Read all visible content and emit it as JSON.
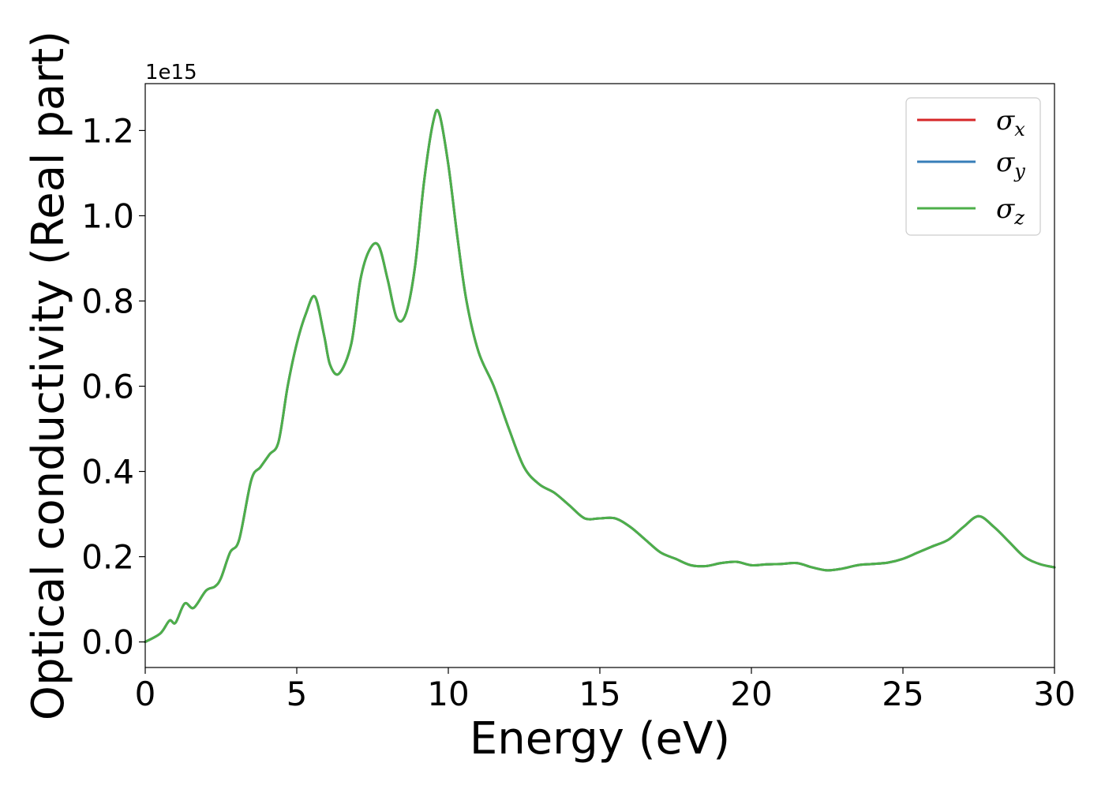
{
  "chart_data": {
    "type": "line",
    "title": "",
    "xlabel": "Energy (eV)",
    "ylabel": "Optical conductivity (Real part)",
    "y_offset_label": "1e15",
    "y_scale_exponent": 15,
    "xlim": [
      0,
      30
    ],
    "ylim": [
      -0.06,
      1.31
    ],
    "x_ticks": [
      0,
      5,
      10,
      15,
      20,
      25,
      30
    ],
    "x_tick_labels": [
      "0",
      "5",
      "10",
      "15",
      "20",
      "25",
      "30"
    ],
    "y_ticks": [
      0.0,
      0.2,
      0.4,
      0.6,
      0.8,
      1.0,
      1.2
    ],
    "y_tick_labels": [
      "0.0",
      "0.2",
      "0.4",
      "0.6",
      "0.8",
      "1.0",
      "1.2"
    ],
    "grid": false,
    "legend_position": "top-right",
    "x": [
      0,
      0.5,
      0.8,
      1.0,
      1.3,
      1.6,
      2.0,
      2.3,
      2.5,
      2.8,
      3.1,
      3.5,
      3.8,
      4.1,
      4.4,
      4.7,
      5.0,
      5.3,
      5.6,
      5.9,
      6.1,
      6.4,
      6.8,
      7.1,
      7.4,
      7.7,
      8.0,
      8.3,
      8.6,
      8.9,
      9.2,
      9.5,
      9.7,
      10.0,
      10.3,
      10.6,
      11.0,
      11.5,
      12.0,
      12.5,
      13.0,
      13.5,
      14.0,
      14.5,
      15.0,
      15.5,
      16.0,
      16.5,
      17.0,
      17.5,
      18.0,
      18.5,
      19.0,
      19.5,
      20.0,
      20.5,
      21.0,
      21.5,
      22.0,
      22.5,
      23.0,
      23.5,
      24.0,
      24.5,
      25.0,
      25.5,
      26.0,
      26.5,
      27.0,
      27.5,
      28.0,
      28.5,
      29.0,
      29.5,
      30.0
    ],
    "series": [
      {
        "name": "σx",
        "color": "#d62728",
        "values": [
          0.0,
          0.02,
          0.05,
          0.045,
          0.09,
          0.08,
          0.12,
          0.13,
          0.15,
          0.21,
          0.24,
          0.38,
          0.41,
          0.44,
          0.47,
          0.6,
          0.7,
          0.77,
          0.81,
          0.72,
          0.65,
          0.63,
          0.7,
          0.85,
          0.92,
          0.93,
          0.85,
          0.76,
          0.77,
          0.88,
          1.08,
          1.22,
          1.24,
          1.12,
          0.95,
          0.8,
          0.68,
          0.6,
          0.5,
          0.41,
          0.37,
          0.35,
          0.32,
          0.29,
          0.29,
          0.29,
          0.27,
          0.24,
          0.21,
          0.195,
          0.18,
          0.178,
          0.185,
          0.188,
          0.18,
          0.182,
          0.183,
          0.185,
          0.175,
          0.168,
          0.172,
          0.18,
          0.183,
          0.186,
          0.195,
          0.21,
          0.225,
          0.24,
          0.27,
          0.295,
          0.27,
          0.235,
          0.2,
          0.183,
          0.175
        ]
      },
      {
        "name": "σy",
        "color": "#377eb8",
        "values": [
          0.0,
          0.02,
          0.05,
          0.045,
          0.09,
          0.08,
          0.12,
          0.13,
          0.15,
          0.21,
          0.24,
          0.38,
          0.41,
          0.44,
          0.47,
          0.6,
          0.7,
          0.77,
          0.81,
          0.72,
          0.65,
          0.63,
          0.7,
          0.85,
          0.92,
          0.93,
          0.85,
          0.76,
          0.77,
          0.88,
          1.08,
          1.22,
          1.24,
          1.12,
          0.95,
          0.8,
          0.68,
          0.6,
          0.5,
          0.41,
          0.37,
          0.35,
          0.32,
          0.29,
          0.29,
          0.29,
          0.27,
          0.24,
          0.21,
          0.195,
          0.18,
          0.178,
          0.185,
          0.188,
          0.18,
          0.182,
          0.183,
          0.185,
          0.175,
          0.168,
          0.172,
          0.18,
          0.183,
          0.186,
          0.195,
          0.21,
          0.225,
          0.24,
          0.27,
          0.295,
          0.27,
          0.235,
          0.2,
          0.183,
          0.175
        ]
      },
      {
        "name": "σz",
        "color": "#4daf4a",
        "values": [
          0.0,
          0.02,
          0.05,
          0.045,
          0.09,
          0.08,
          0.12,
          0.13,
          0.15,
          0.21,
          0.24,
          0.38,
          0.41,
          0.44,
          0.47,
          0.6,
          0.7,
          0.77,
          0.81,
          0.72,
          0.65,
          0.63,
          0.7,
          0.85,
          0.92,
          0.93,
          0.85,
          0.76,
          0.77,
          0.88,
          1.08,
          1.22,
          1.24,
          1.12,
          0.95,
          0.8,
          0.68,
          0.6,
          0.5,
          0.41,
          0.37,
          0.35,
          0.32,
          0.29,
          0.29,
          0.29,
          0.27,
          0.24,
          0.21,
          0.195,
          0.18,
          0.178,
          0.185,
          0.188,
          0.18,
          0.182,
          0.183,
          0.185,
          0.175,
          0.168,
          0.172,
          0.18,
          0.183,
          0.186,
          0.195,
          0.21,
          0.225,
          0.24,
          0.27,
          0.295,
          0.27,
          0.235,
          0.2,
          0.183,
          0.175
        ]
      }
    ],
    "legend": [
      {
        "symbol": "σ",
        "sub": "x",
        "color": "#d62728"
      },
      {
        "symbol": "σ",
        "sub": "y",
        "color": "#377eb8"
      },
      {
        "symbol": "σ",
        "sub": "z",
        "color": "#4daf4a"
      }
    ]
  }
}
